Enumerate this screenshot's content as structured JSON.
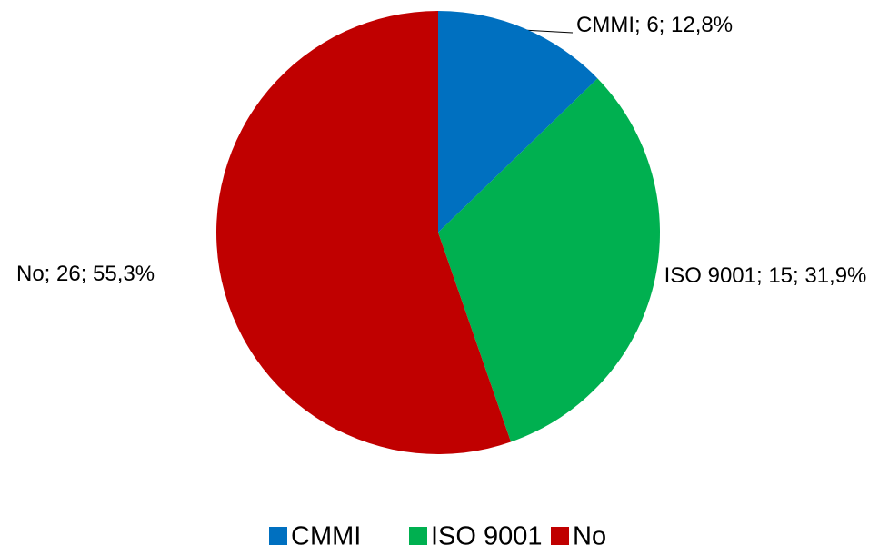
{
  "chart_data": {
    "type": "pie",
    "categories": [
      "CMMI",
      "ISO 9001",
      "No"
    ],
    "values": [
      6,
      15,
      26
    ],
    "value_labels": [
      "CMMI; 6; 12,8%",
      "ISO 9001; 15; 31,9%",
      "No; 26; 55,3%"
    ],
    "colors": [
      "#0070c0",
      "#00b050",
      "#c00000"
    ],
    "legend": "bottom"
  }
}
